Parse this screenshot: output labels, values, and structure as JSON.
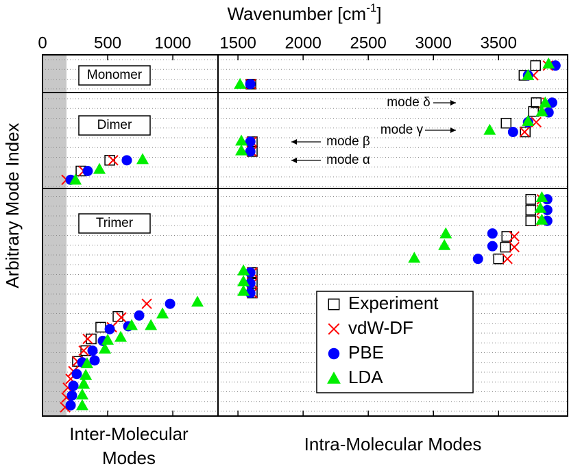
{
  "chart_data": {
    "type": "scatter",
    "x_label": {
      "text": "Wavenumber [cm",
      "superscript": "-1",
      "suffix": "]"
    },
    "y_label": "Arbitrary Mode Index",
    "xlim": [
      0,
      4030
    ],
    "xticks": [
      0,
      500,
      1000,
      1500,
      2000,
      2500,
      3000,
      3500
    ],
    "ylim": [
      0,
      37
    ],
    "panels": [
      "Monomer",
      "Dimer",
      "Trimer"
    ],
    "annotations": [
      "mode δ",
      "mode γ",
      "mode β",
      "mode α"
    ],
    "region_labels": {
      "inter": [
        "Inter-Molecular",
        "Modes"
      ],
      "intra": "Intra-Molecular Modes"
    },
    "legend": "lower right",
    "series": [
      {
        "name": "Experiment",
        "color": "#000000",
        "marker": "square",
        "x": [
          1600,
          3695,
          3784,
          1610,
          1610,
          3705,
          3558,
          3768,
          3789,
          295,
          516,
          1610,
          1610,
          1610,
          3500,
          3553,
          3563,
          3747,
          3747,
          3747,
          268,
          332,
          374,
          447,
          579
        ],
        "y": [
          34.0,
          34.9,
          35.9,
          27.1,
          28.1,
          29.1,
          30.0,
          31.2,
          32.1,
          25.1,
          26.2,
          12.6,
          13.6,
          14.7,
          16.1,
          17.3,
          18.4,
          20.0,
          21.1,
          22.2,
          5.6,
          6.7,
          7.9,
          9.1,
          10.2
        ]
      },
      {
        "name": "vdW-DF",
        "color": "#ff0000",
        "marker": "cross",
        "x": [
          1600,
          3768,
          3879,
          1605,
          1605,
          3700,
          3789,
          3847,
          3874,
          184,
          316,
          542,
          1610,
          1610,
          1610,
          3568,
          3621,
          3621,
          3832,
          3832,
          3832,
          174,
          184,
          195,
          216,
          237,
          268,
          316,
          347,
          532,
          605,
          800
        ],
        "y": [
          34.0,
          34.9,
          35.9,
          27.1,
          28.1,
          29.1,
          30.1,
          31.2,
          32.1,
          24.2,
          25.1,
          26.2,
          12.6,
          13.6,
          14.7,
          16.1,
          17.3,
          18.4,
          20.0,
          21.1,
          22.2,
          0.9,
          1.9,
          2.9,
          3.8,
          4.6,
          5.6,
          6.7,
          7.9,
          9.1,
          10.1,
          11.5
        ]
      },
      {
        "name": "PBE",
        "color": "#0000ff",
        "marker": "circle",
        "x": [
          1595,
          3726,
          3937,
          1595,
          1595,
          3611,
          3726,
          3884,
          3911,
          216,
          347,
          647,
          1595,
          1595,
          1595,
          3342,
          3453,
          3453,
          3874,
          3874,
          3874,
          216,
          226,
          237,
          263,
          305,
          400,
          384,
          463,
          516,
          658,
          742,
          979
        ],
        "y": [
          34.0,
          34.9,
          35.9,
          27.1,
          28.1,
          29.1,
          30.1,
          31.1,
          32.1,
          24.2,
          25.1,
          26.2,
          12.6,
          13.6,
          14.7,
          16.1,
          17.4,
          18.7,
          20.0,
          21.1,
          22.2,
          1.1,
          2.1,
          3.1,
          4.3,
          5.5,
          5.7,
          6.7,
          7.7,
          8.9,
          9.2,
          10.3,
          11.5
        ]
      },
      {
        "name": "LDA",
        "color": "#00ee00",
        "marker": "triangle",
        "x": [
          1516,
          3726,
          3884,
          1526,
          1526,
          3432,
          3726,
          3832,
          3858,
          253,
          437,
          768,
          1542,
          1542,
          1542,
          2853,
          3084,
          3095,
          3832,
          3821,
          3832,
          305,
          305,
          316,
          332,
          342,
          479,
          500,
          600,
          684,
          832,
          921,
          1189
        ],
        "y": [
          34.0,
          34.9,
          36.1,
          27.2,
          28.2,
          29.3,
          30.2,
          31.2,
          32.1,
          24.2,
          25.3,
          26.3,
          12.8,
          13.8,
          14.9,
          16.2,
          17.5,
          18.7,
          20.1,
          21.3,
          22.4,
          1.1,
          2.2,
          3.3,
          4.2,
          5.4,
          6.9,
          7.8,
          8.1,
          9.3,
          9.3,
          10.5,
          11.7
        ]
      }
    ]
  }
}
